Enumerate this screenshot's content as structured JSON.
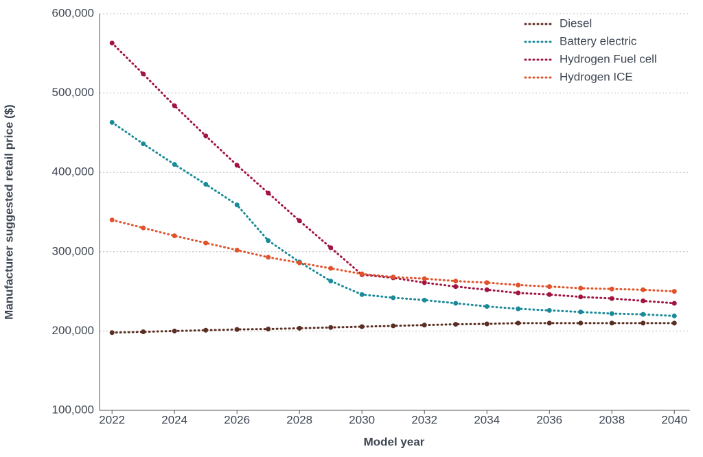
{
  "chart_data": {
    "type": "line",
    "x_label": "Model year",
    "y_label": "Manufacturer suggested retail price ($)",
    "x": [
      2022,
      2023,
      2024,
      2025,
      2026,
      2027,
      2028,
      2029,
      2030,
      2031,
      2032,
      2033,
      2034,
      2035,
      2036,
      2037,
      2038,
      2039,
      2040
    ],
    "xlim": [
      2021.6,
      2040.5
    ],
    "xticks": [
      2022,
      2024,
      2026,
      2028,
      2030,
      2032,
      2034,
      2036,
      2038,
      2040
    ],
    "ylim": [
      100000,
      600000
    ],
    "yticks": [
      {
        "value": 100000,
        "label": "100,000"
      },
      {
        "value": 200000,
        "label": "200,000"
      },
      {
        "value": 300000,
        "label": "300,000"
      },
      {
        "value": 400000,
        "label": "400,000"
      },
      {
        "value": 500000,
        "label": "500,000"
      },
      {
        "value": 600000,
        "label": "600,000"
      }
    ],
    "grid": true,
    "legend": "top-right",
    "series": [
      {
        "name": "Diesel",
        "color": "#5a2e22",
        "values": [
          198000,
          199000,
          200000,
          201000,
          202000,
          202500,
          203500,
          204500,
          205500,
          206500,
          207500,
          208500,
          209000,
          210000,
          210000,
          210000,
          210000,
          210000,
          210000
        ]
      },
      {
        "name": "Battery electric",
        "color": "#1a8a99",
        "values": [
          463000,
          436000,
          410000,
          385000,
          359000,
          314000,
          287000,
          263000,
          246000,
          242000,
          239000,
          235000,
          231000,
          228000,
          226000,
          224000,
          222000,
          221000,
          219000
        ]
      },
      {
        "name": "Hydrogen Fuel cell",
        "color": "#a0143f",
        "values": [
          563000,
          524000,
          484000,
          446000,
          409000,
          374000,
          339000,
          305000,
          271000,
          267000,
          261000,
          256000,
          252000,
          248000,
          246000,
          243000,
          241000,
          238000,
          235000
        ]
      },
      {
        "name": "Hydrogen ICE",
        "color": "#e0522a",
        "values": [
          340000,
          330000,
          320000,
          311000,
          302000,
          293000,
          286000,
          279000,
          272000,
          268000,
          266000,
          263000,
          261000,
          258000,
          256000,
          254000,
          253000,
          252000,
          250000
        ]
      }
    ]
  }
}
